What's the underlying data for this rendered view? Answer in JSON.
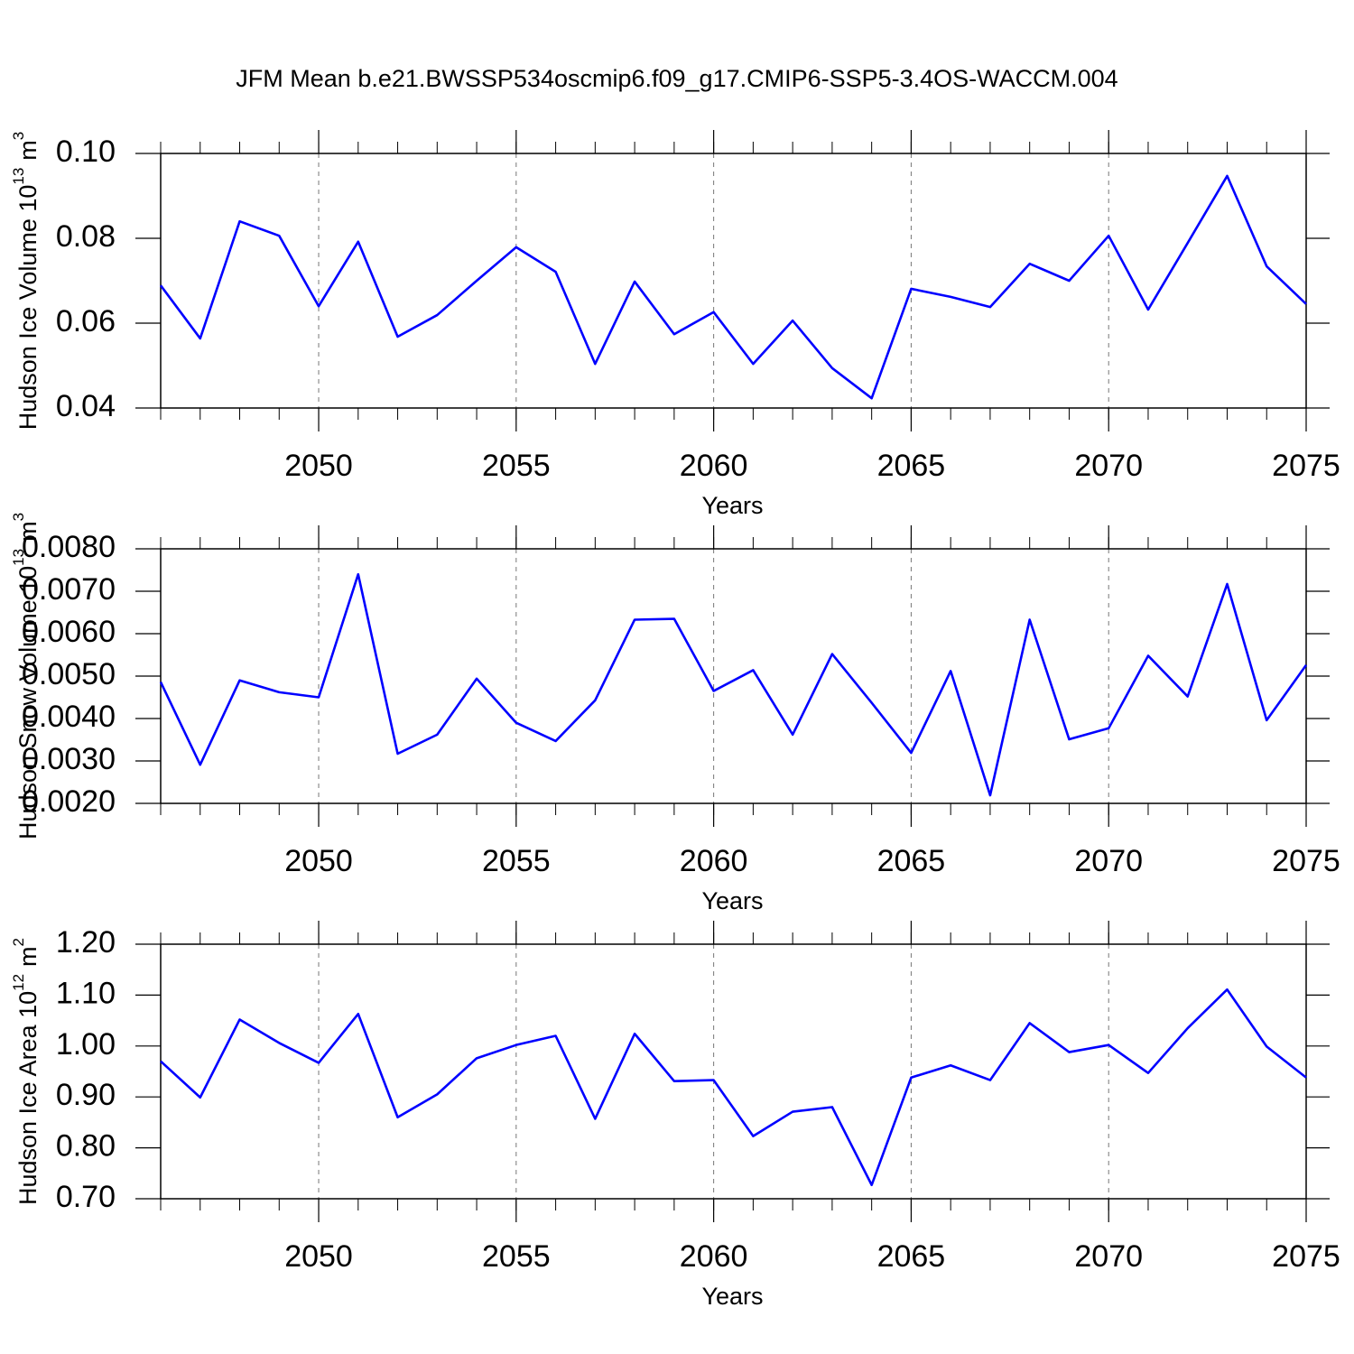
{
  "title": "JFM Mean b.e21.BWSSP534oscmip6.f09_g17.CMIP6-SSP5-3.4OS-WACCM.004",
  "chart_data": [
    {
      "type": "line",
      "ylabel": {
        "text": "Hudson Ice Volume 10",
        "exp": "13",
        "unit": "m",
        "unit_exp": "3"
      },
      "xlabel": "Years",
      "x": [
        2046,
        2047,
        2048,
        2049,
        2050,
        2051,
        2052,
        2053,
        2054,
        2055,
        2056,
        2057,
        2058,
        2059,
        2060,
        2061,
        2062,
        2063,
        2064,
        2065,
        2066,
        2067,
        2068,
        2069,
        2070,
        2071,
        2072,
        2073,
        2074,
        2075
      ],
      "values": [
        0.0689,
        0.0564,
        0.084,
        0.0806,
        0.064,
        0.0792,
        0.0568,
        0.0619,
        0.07,
        0.0779,
        0.0721,
        0.0504,
        0.0698,
        0.0574,
        0.0626,
        0.0504,
        0.0606,
        0.0494,
        0.0423,
        0.0681,
        0.0662,
        0.0638,
        0.074,
        0.07,
        0.0806,
        0.0632,
        0.0789,
        0.0947,
        0.0734,
        0.0645
      ],
      "color": "#0000ff",
      "xlim": [
        2046,
        2075
      ],
      "xticks": [
        2050,
        2055,
        2060,
        2065,
        2070,
        2075
      ],
      "ylim": [
        0.04,
        0.1
      ],
      "yticks": [
        0.04,
        0.06,
        0.08,
        {
          "value": 0.1,
          "label": "0.10"
        }
      ],
      "grid": "x-dashed"
    },
    {
      "type": "line",
      "ylabel": {
        "text": "Hudson Snow Volume 10",
        "exp": "13",
        "unit": "m",
        "unit_exp": "3"
      },
      "xlabel": "Years",
      "x": [
        2046,
        2047,
        2048,
        2049,
        2050,
        2051,
        2052,
        2053,
        2054,
        2055,
        2056,
        2057,
        2058,
        2059,
        2060,
        2061,
        2062,
        2063,
        2064,
        2065,
        2066,
        2067,
        2068,
        2069,
        2070,
        2071,
        2072,
        2073,
        2074,
        2075
      ],
      "values": [
        0.00486,
        0.00291,
        0.0049,
        0.00462,
        0.0045,
        0.0074,
        0.00317,
        0.00362,
        0.00494,
        0.0039,
        0.00347,
        0.00443,
        0.00633,
        0.00635,
        0.00465,
        0.00514,
        0.00362,
        0.00552,
        0.00437,
        0.00319,
        0.00512,
        0.00219,
        0.00633,
        0.00351,
        0.00377,
        0.00548,
        0.00452,
        0.00717,
        0.00396,
        0.00526
      ],
      "color": "#0000ff",
      "xlim": [
        2046,
        2075
      ],
      "xticks": [
        2050,
        2055,
        2060,
        2065,
        2070,
        2075
      ],
      "ylim": [
        0.002,
        0.008
      ],
      "yticks": [
        {
          "value": 0.002,
          "label": "0.0020"
        },
        {
          "value": 0.003,
          "label": "0.0030"
        },
        {
          "value": 0.004,
          "label": "0.0040"
        },
        {
          "value": 0.005,
          "label": "0.0050"
        },
        {
          "value": 0.006,
          "label": "0.0060"
        },
        {
          "value": 0.007,
          "label": "0.0070"
        },
        {
          "value": 0.008,
          "label": "0.0080"
        }
      ],
      "grid": "x-dashed"
    },
    {
      "type": "line",
      "ylabel": {
        "text": "Hudson Ice Area 10",
        "exp": "12",
        "unit": "m",
        "unit_exp": "2"
      },
      "xlabel": "Years",
      "x": [
        2046,
        2047,
        2048,
        2049,
        2050,
        2051,
        2052,
        2053,
        2054,
        2055,
        2056,
        2057,
        2058,
        2059,
        2060,
        2061,
        2062,
        2063,
        2064,
        2065,
        2066,
        2067,
        2068,
        2069,
        2070,
        2071,
        2072,
        2073,
        2074,
        2075
      ],
      "values": [
        0.97,
        0.899,
        1.052,
        1.006,
        0.967,
        1.063,
        0.86,
        0.905,
        0.976,
        1.002,
        1.02,
        0.857,
        1.024,
        0.931,
        0.933,
        0.823,
        0.871,
        0.88,
        0.727,
        0.938,
        0.962,
        0.933,
        1.045,
        0.988,
        1.002,
        0.947,
        1.035,
        1.111,
        0.999,
        0.938
      ],
      "color": "#0000ff",
      "xlim": [
        2046,
        2075
      ],
      "xticks": [
        2050,
        2055,
        2060,
        2065,
        2070,
        2075
      ],
      "ylim": [
        0.7,
        1.2
      ],
      "yticks": [
        {
          "value": 0.7,
          "label": "0.70"
        },
        {
          "value": 0.8,
          "label": "0.80"
        },
        {
          "value": 0.9,
          "label": "0.90"
        },
        {
          "value": 1.0,
          "label": "1.00"
        },
        {
          "value": 1.1,
          "label": "1.10"
        },
        {
          "value": 1.2,
          "label": "1.20"
        }
      ],
      "grid": "x-dashed"
    }
  ]
}
